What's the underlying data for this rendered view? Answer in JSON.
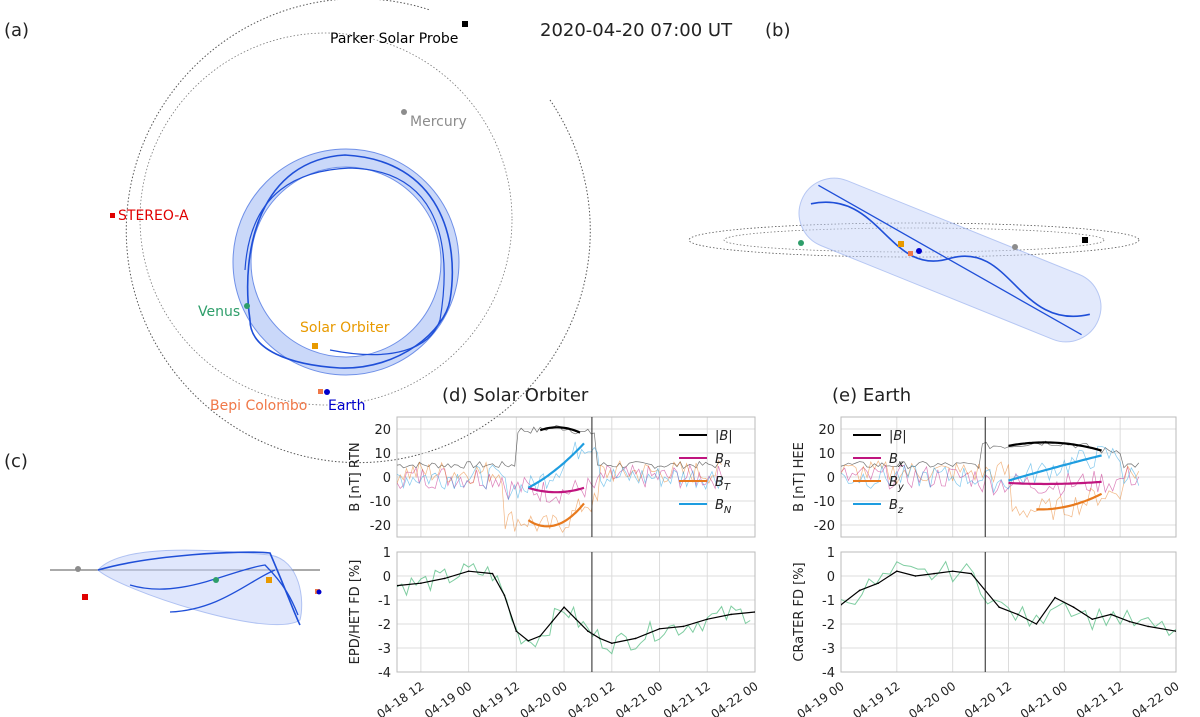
{
  "figure": {
    "timestamp": "2020-04-20 07:00 UT",
    "panel_labels": {
      "a": "(a)",
      "b": "(b)",
      "c": "(c)",
      "d": "(d)",
      "e": "(e)"
    },
    "bodies": [
      {
        "name": "Parker Solar Probe",
        "color": "#000000"
      },
      {
        "name": "Mercury",
        "color": "#8c8c8c"
      },
      {
        "name": "STEREO-A",
        "color": "#e00000"
      },
      {
        "name": "Venus",
        "color": "#2e9e6a"
      },
      {
        "name": "Solar Orbiter",
        "color": "#e89a00"
      },
      {
        "name": "Bepi Colombo",
        "color": "#f07848"
      },
      {
        "name": "Earth",
        "color": "#0000cc"
      }
    ],
    "flux_rope_color": "#1f4fd8",
    "panel_d_title": "(d)  Solar Orbiter",
    "panel_e_title": "(e)  Earth"
  },
  "chart_data": [
    {
      "type": "line",
      "title": "(d)  Solar Orbiter",
      "ylabel": "B [nT] RTN",
      "ylim": [
        -25,
        25
      ],
      "yticks": [
        -20,
        -10,
        0,
        10,
        20
      ],
      "grid": true,
      "legend_position": "top-right",
      "x_range": [
        "2020-04-18 06:00",
        "2020-04-22 00:00"
      ],
      "vertical_line": "2020-04-20 07:00",
      "series": [
        {
          "name": "|B|",
          "color": "#000000",
          "model_x": [
            "04-19 18:00",
            "04-20 00:00",
            "04-20 04:00"
          ],
          "model_values": [
            19.5,
            20.5,
            18.5
          ]
        },
        {
          "name": "B_R",
          "color": "#c0157f",
          "model_x": [
            "04-19 15:00",
            "04-20 01:00",
            "04-20 05:00"
          ],
          "model_values": [
            -4.5,
            -6,
            -4.5
          ]
        },
        {
          "name": "B_T",
          "color": "#e87a1e",
          "model_x": [
            "04-19 15:00",
            "04-19 22:00",
            "04-20 05:00"
          ],
          "model_values": [
            -18,
            -20,
            -11
          ]
        },
        {
          "name": "B_N",
          "color": "#1e9de0",
          "model_x": [
            "04-19 15:00",
            "04-19 23:00",
            "04-20 05:00"
          ],
          "model_values": [
            -4.5,
            4.5,
            14
          ]
        }
      ]
    },
    {
      "type": "line",
      "ylabel": "EPD/HET FD [%]",
      "ylim": [
        -4,
        1
      ],
      "yticks": [
        -4,
        -3,
        -2,
        -1,
        0,
        1
      ],
      "xticks": [
        "04-18 12",
        "04-19 00",
        "04-19 12",
        "04-20 00",
        "04-20 12",
        "04-21 00",
        "04-21 12",
        "04-22 00"
      ],
      "grid": true,
      "series": [
        {
          "name": "",
          "color": "#000000",
          "x": [
            "04-18 06",
            "04-18 12",
            "04-18 18",
            "04-19 00",
            "04-19 06",
            "04-19 09",
            "04-19 12",
            "04-19 15",
            "04-19 18",
            "04-19 21",
            "04-20 00",
            "04-20 03",
            "04-20 06",
            "04-20 09",
            "04-20 12",
            "04-20 18",
            "04-21 00",
            "04-21 06",
            "04-21 12",
            "04-21 18",
            "04-22 00"
          ],
          "values": [
            -0.4,
            -0.3,
            -0.1,
            0.2,
            0.1,
            -0.8,
            -2.3,
            -2.7,
            -2.5,
            -1.9,
            -1.3,
            -1.8,
            -2.3,
            -2.6,
            -2.8,
            -2.6,
            -2.2,
            -2.1,
            -1.8,
            -1.6,
            -1.5
          ]
        }
      ]
    },
    {
      "type": "line",
      "title": "(e)  Earth",
      "ylabel": "B [nT] HEE",
      "ylim": [
        -25,
        25
      ],
      "yticks": [
        -20,
        -10,
        0,
        10,
        20
      ],
      "grid": true,
      "legend_position": "top-left",
      "x_range": [
        "2020-04-19 00:00",
        "2020-04-22 00:00"
      ],
      "vertical_line": "2020-04-20 07:00",
      "series": [
        {
          "name": "|B|",
          "color": "#000000",
          "model_x": [
            "04-20 12:00",
            "04-21 00:00",
            "04-21 08:00"
          ],
          "model_values": [
            13,
            14,
            11
          ]
        },
        {
          "name": "B_x",
          "color": "#c0157f",
          "model_x": [
            "04-20 12:00",
            "04-21 00:00",
            "04-21 08:00"
          ],
          "model_values": [
            -2.5,
            -2.8,
            -2
          ]
        },
        {
          "name": "B_y",
          "color": "#e87a1e",
          "model_x": [
            "04-20 18:00",
            "04-21 00:00",
            "04-21 08:00"
          ],
          "model_values": [
            -13.5,
            -12.5,
            -7
          ]
        },
        {
          "name": "B_z",
          "color": "#1e9de0",
          "model_x": [
            "04-20 12:00",
            "04-21 00:00",
            "04-21 08:00"
          ],
          "model_values": [
            -1.5,
            5,
            9
          ]
        }
      ]
    },
    {
      "type": "line",
      "ylabel": "CRaTER FD [%]",
      "ylim": [
        -4,
        1
      ],
      "yticks": [
        -4,
        -3,
        -2,
        -1,
        0,
        1
      ],
      "xticks": [
        "04-19 00",
        "04-19 12",
        "04-20 00",
        "04-20 12",
        "04-21 00",
        "04-21 12",
        "04-22 00"
      ],
      "grid": true,
      "series": [
        {
          "name": "",
          "color": "#000000",
          "x": [
            "04-19 00",
            "04-19 04",
            "04-19 08",
            "04-19 12",
            "04-19 16",
            "04-19 20",
            "04-20 00",
            "04-20 04",
            "04-20 07",
            "04-20 10",
            "04-20 14",
            "04-20 18",
            "04-20 22",
            "04-21 02",
            "04-21 06",
            "04-21 10",
            "04-21 14",
            "04-21 18",
            "04-22 00"
          ],
          "values": [
            -1.2,
            -0.6,
            -0.3,
            0.2,
            0.0,
            0.1,
            0.2,
            0.1,
            -0.6,
            -1.3,
            -1.6,
            -2.0,
            -0.9,
            -1.3,
            -1.8,
            -1.6,
            -1.9,
            -2.1,
            -2.3
          ]
        }
      ]
    }
  ]
}
